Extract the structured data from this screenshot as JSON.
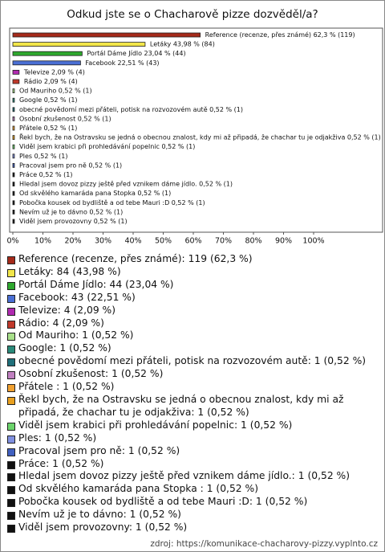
{
  "chart_data": {
    "type": "bar",
    "orientation": "horizontal",
    "title": "Odkud jste se o Chacharově pizze dozvěděl/a?",
    "values": [
      62.3,
      43.98,
      23.04,
      22.51,
      2.09,
      2.09,
      0.52,
      0.52,
      0.52,
      0.52,
      0.52,
      0.52,
      0.52,
      0.52,
      0.52,
      0.52,
      0.52,
      0.52,
      0.52,
      0.52,
      0.52
    ],
    "value_labels": [
      "Reference (recenze, přes známé) 62,3 % (119)",
      "Letáky 43,98 % (84)",
      "Portál Dáme Jídlo 23,04 % (44)",
      "Facebook 22,51 % (43)",
      "Televize 2,09 % (4)",
      "Rádio 2,09 % (4)",
      "Od Mauriho 0,52 % (1)",
      "Google 0,52 % (1)",
      "obecné povědomí mezi přáteli, potisk na rozvozovém autě 0,52 % (1)",
      "Osobní zkušenost 0,52 % (1)",
      "Přátele  0,52 % (1)",
      "Řekl bych, že na Ostravsku se jedná o obecnou znalost, kdy mi až připadá, že chachar tu je odjakživa 0,52 % (1)",
      "Viděl jsem krabici při prohledávání popelnic 0,52 % (1)",
      "Ples 0,52 % (1)",
      "Pracoval jsem pro ně 0,52 % (1)",
      "Práce 0,52 % (1)",
      "Hledal jsem dovoz pizzy ještě před vznikem dáme jídlo. 0,52 % (1)",
      "Od skvělého kamaráda pana Stopka  0,52 % (1)",
      "Pobočka kousek od bydliště a od tebe Mauri :D 0,52 % (1)",
      "Nevím už je to dávno 0,52 % (1)",
      "Viděl jsem provozovny 0,52 % (1)"
    ],
    "legend": [
      "Reference (recenze, přes známé): 119 (62,3 %)",
      "Letáky: 84 (43,98 %)",
      "Portál Dáme Jídlo: 44 (23,04 %)",
      "Facebook: 43 (22,51 %)",
      "Televize: 4 (2,09 %)",
      "Rádio: 4 (2,09 %)",
      "Od Mauriho: 1 (0,52 %)",
      "Google: 1 (0,52 %)",
      "obecné povědomí mezi přáteli, potisk na rozvozovém autě: 1 (0,52 %)",
      "Osobní zkušenost: 1 (0,52 %)",
      "Přátele : 1 (0,52 %)",
      "Řekl bych, že na Ostravsku se jedná o obecnou znalost, kdy mi až připadá, že chachar tu je odjakživa: 1 (0,52 %)",
      "Viděl jsem krabici při prohledávání popelnic: 1 (0,52 %)",
      "Ples: 1 (0,52 %)",
      "Pracoval jsem pro ně: 1 (0,52 %)",
      "Práce: 1 (0,52 %)",
      "Hledal jsem dovoz pizzy ještě před vznikem dáme jídlo.: 1 (0,52 %)",
      "Od skvělého kamaráda pana Stopka : 1 (0,52 %)",
      "Pobočka kousek od bydliště a od tebe Mauri :D: 1 (0,52 %)",
      "Nevím už je to dávno: 1 (0,52 %)",
      "Viděl jsem provozovny: 1 (0,52 %)"
    ],
    "colors": [
      "#a52a1a",
      "#f2e64a",
      "#2ea82e",
      "#4a6fd4",
      "#b02ab0",
      "#c0392b",
      "#a8e08a",
      "#2a8a7a",
      "#1f6f7a",
      "#c080c0",
      "#f0a030",
      "#e8a020",
      "#6cd46c",
      "#8090e0",
      "#4060c0",
      "#111111",
      "#111111",
      "#111111",
      "#111111",
      "#111111",
      "#111111"
    ],
    "xlim": [
      0,
      100
    ],
    "xticks": [
      {
        "value": 0,
        "label": "0%"
      },
      {
        "value": 10,
        "label": "10%"
      },
      {
        "value": 20,
        "label": "20%"
      },
      {
        "value": 30,
        "label": "30%"
      },
      {
        "value": 40,
        "label": "40%"
      },
      {
        "value": 50,
        "label": "50%"
      },
      {
        "value": 60,
        "label": "60%"
      },
      {
        "value": 70,
        "label": "70%"
      },
      {
        "value": 80,
        "label": "80%"
      },
      {
        "value": 90,
        "label": "90%"
      },
      {
        "value": 100,
        "label": "100%"
      }
    ],
    "source": "zdroj: https://komunikace-chacharovy-pizzy.vyplnto.cz"
  }
}
